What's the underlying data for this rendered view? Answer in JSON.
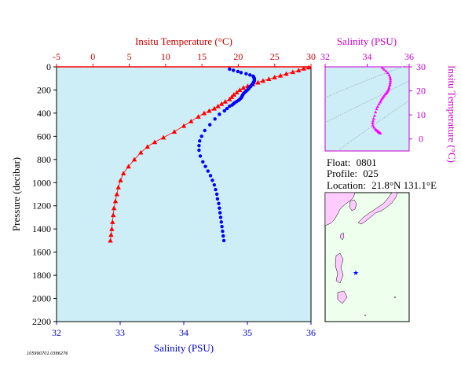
{
  "chart_data": [
    {
      "type": "scatter",
      "title": "",
      "x_top_label": "Insitu Temperature (°C)",
      "xlabel": "Salinity (PSU)",
      "ylabel": "Pressure (decibar)",
      "x_top_lim": [
        -5,
        30
      ],
      "x_top_ticks": [
        "-5",
        "0",
        "5",
        "10",
        "15",
        "20",
        "25",
        "30"
      ],
      "xlim": [
        32,
        36
      ],
      "x_ticks": [
        "32",
        "33",
        "34",
        "35",
        "36"
      ],
      "ylim": [
        0,
        2200
      ],
      "y_ticks": [
        "0",
        "200",
        "400",
        "600",
        "800",
        "1000",
        "1200",
        "1400",
        "1600",
        "1800",
        "2000",
        "2200"
      ],
      "grid": false,
      "series": [
        {
          "quantity": "temperature",
          "axis": "top",
          "color": "#ff0000",
          "marker": "triangle",
          "points": [
            [
              29.7,
              5
            ],
            [
              29.0,
              15
            ],
            [
              28.3,
              30
            ],
            [
              27.5,
              45
            ],
            [
              26.6,
              60
            ],
            [
              25.8,
              75
            ],
            [
              25.0,
              90
            ],
            [
              24.2,
              105
            ],
            [
              23.4,
              120
            ],
            [
              22.7,
              135
            ],
            [
              22.0,
              150
            ],
            [
              21.3,
              165
            ],
            [
              20.7,
              180
            ],
            [
              20.2,
              200
            ],
            [
              19.8,
              220
            ],
            [
              19.4,
              240
            ],
            [
              19.1,
              260
            ],
            [
              18.8,
              280
            ],
            [
              18.2,
              300
            ],
            [
              17.7,
              320
            ],
            [
              17.2,
              340
            ],
            [
              16.7,
              360
            ],
            [
              16.0,
              380
            ],
            [
              15.3,
              400
            ],
            [
              14.5,
              430
            ],
            [
              13.5,
              470
            ],
            [
              12.5,
              510
            ],
            [
              11.2,
              560
            ],
            [
              9.7,
              610
            ],
            [
              8.5,
              650
            ],
            [
              7.5,
              690
            ],
            [
              6.6,
              740
            ],
            [
              5.7,
              800
            ],
            [
              4.9,
              860
            ],
            [
              4.2,
              920
            ],
            [
              3.8,
              980
            ],
            [
              3.5,
              1040
            ],
            [
              3.3,
              1100
            ],
            [
              3.1,
              1160
            ],
            [
              2.9,
              1220
            ],
            [
              2.8,
              1280
            ],
            [
              2.7,
              1340
            ],
            [
              2.6,
              1400
            ],
            [
              2.5,
              1450
            ],
            [
              2.4,
              1500
            ]
          ]
        },
        {
          "quantity": "salinity",
          "axis": "bottom",
          "color": "#0000ff",
          "marker": "circle",
          "points": [
            [
              34.72,
              20
            ],
            [
              34.78,
              30
            ],
            [
              34.85,
              40
            ],
            [
              34.9,
              50
            ],
            [
              34.98,
              60
            ],
            [
              35.04,
              70
            ],
            [
              35.09,
              80
            ],
            [
              35.1,
              90
            ],
            [
              35.11,
              100
            ],
            [
              35.11,
              110
            ],
            [
              35.11,
              120
            ],
            [
              35.1,
              130
            ],
            [
              35.09,
              140
            ],
            [
              35.08,
              150
            ],
            [
              35.06,
              160
            ],
            [
              35.05,
              170
            ],
            [
              35.03,
              180
            ],
            [
              35.02,
              190
            ],
            [
              35.0,
              200
            ],
            [
              34.98,
              210
            ],
            [
              34.96,
              220
            ],
            [
              34.94,
              230
            ],
            [
              34.93,
              240
            ],
            [
              34.92,
              250
            ],
            [
              34.91,
              260
            ],
            [
              34.9,
              270
            ],
            [
              34.88,
              280
            ],
            [
              34.86,
              290
            ],
            [
              34.83,
              300
            ],
            [
              34.8,
              310
            ],
            [
              34.78,
              320
            ],
            [
              34.76,
              330
            ],
            [
              34.72,
              340
            ],
            [
              34.68,
              360
            ],
            [
              34.64,
              380
            ],
            [
              34.56,
              410
            ],
            [
              34.49,
              450
            ],
            [
              34.41,
              500
            ],
            [
              34.33,
              550
            ],
            [
              34.28,
              600
            ],
            [
              34.25,
              640
            ],
            [
              34.24,
              680
            ],
            [
              34.24,
              720
            ],
            [
              34.26,
              770
            ],
            [
              34.3,
              820
            ],
            [
              34.34,
              860
            ],
            [
              34.38,
              900
            ],
            [
              34.42,
              940
            ],
            [
              34.45,
              980
            ],
            [
              34.48,
              1020
            ],
            [
              34.5,
              1060
            ],
            [
              34.52,
              1100
            ],
            [
              34.53,
              1140
            ],
            [
              34.55,
              1180
            ],
            [
              34.56,
              1220
            ],
            [
              34.57,
              1260
            ],
            [
              34.58,
              1300
            ],
            [
              34.59,
              1340
            ],
            [
              34.6,
              1380
            ],
            [
              34.61,
              1420
            ],
            [
              34.62,
              1460
            ],
            [
              34.63,
              1500
            ]
          ]
        }
      ]
    },
    {
      "type": "scatter",
      "title": "",
      "xlabel": "Salinity (PSU)",
      "ylabel": "Insitu Temperature (°C)",
      "xlim": [
        32,
        36
      ],
      "x_ticks": [
        "32",
        "34",
        "36"
      ],
      "ylim": [
        -5,
        30
      ],
      "y_ticks": [
        "0",
        "10",
        "20",
        "30"
      ],
      "color": "#ff00ff",
      "marker": "triangle",
      "points": [
        [
          34.72,
          29.7
        ],
        [
          34.8,
          29.0
        ],
        [
          34.9,
          28.3
        ],
        [
          34.98,
          27.5
        ],
        [
          35.05,
          26.6
        ],
        [
          35.09,
          25.8
        ],
        [
          35.11,
          25.0
        ],
        [
          35.11,
          24.2
        ],
        [
          35.1,
          23.4
        ],
        [
          35.09,
          22.7
        ],
        [
          35.06,
          22.0
        ],
        [
          35.04,
          21.3
        ],
        [
          35.02,
          20.7
        ],
        [
          35.0,
          20.2
        ],
        [
          34.96,
          19.8
        ],
        [
          34.93,
          19.4
        ],
        [
          34.91,
          19.1
        ],
        [
          34.88,
          18.8
        ],
        [
          34.83,
          18.2
        ],
        [
          34.78,
          17.7
        ],
        [
          34.74,
          17.2
        ],
        [
          34.7,
          16.7
        ],
        [
          34.66,
          16.0
        ],
        [
          34.62,
          15.3
        ],
        [
          34.56,
          14.5
        ],
        [
          34.5,
          13.5
        ],
        [
          34.45,
          12.5
        ],
        [
          34.4,
          11.2
        ],
        [
          34.35,
          9.7
        ],
        [
          34.31,
          8.5
        ],
        [
          34.28,
          7.5
        ],
        [
          34.26,
          6.6
        ],
        [
          34.27,
          5.7
        ],
        [
          34.32,
          4.9
        ],
        [
          34.38,
          4.2
        ],
        [
          34.43,
          3.8
        ],
        [
          34.47,
          3.5
        ],
        [
          34.51,
          3.3
        ],
        [
          34.53,
          3.1
        ],
        [
          34.55,
          2.9
        ],
        [
          34.57,
          2.8
        ],
        [
          34.58,
          2.7
        ],
        [
          34.6,
          2.6
        ],
        [
          34.61,
          2.5
        ],
        [
          34.63,
          2.4
        ]
      ]
    }
  ],
  "float_info": {
    "float_label": "Float:",
    "float_value": "0801",
    "profile_label": "Profile:",
    "profile_value": "025",
    "location_label": "Location:",
    "location_value": "21.8°N  131.1°E"
  },
  "map": {
    "marker": "star",
    "marker_color": "#0000ff",
    "land_color": "#ffccff",
    "sea_color": "#eeffee"
  },
  "footnote": "105990701.0386276",
  "colors": {
    "panel_bg": "#cdeef7",
    "temperature": "#ff0000",
    "salinity": "#0000ff",
    "ts_axis": "#cc00cc"
  }
}
